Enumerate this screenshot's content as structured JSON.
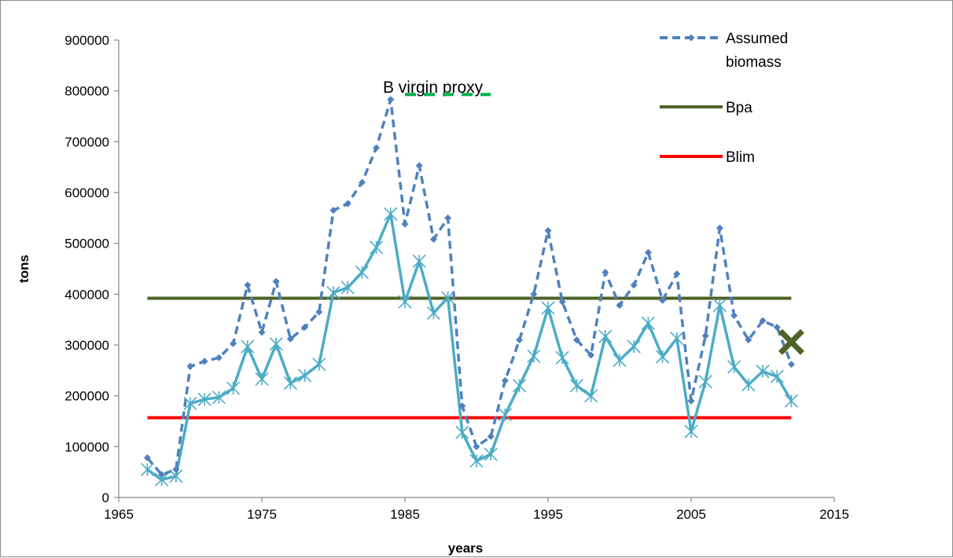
{
  "chart_data": {
    "type": "line",
    "title": "",
    "xlabel": "years",
    "ylabel": "tons",
    "xlim": [
      1965,
      2015
    ],
    "ylim": [
      0,
      900000
    ],
    "x_ticks": [
      1965,
      1975,
      1985,
      1995,
      2005,
      2015
    ],
    "y_ticks": [
      0,
      100000,
      200000,
      300000,
      400000,
      500000,
      600000,
      700000,
      800000,
      900000
    ],
    "grid": false,
    "legend_position": "top-right",
    "series": [
      {
        "name": "Assumed biomass",
        "style": "dashed",
        "color": "#4f81bd",
        "marker": "diamond",
        "x": [
          1967,
          1968,
          1969,
          1970,
          1971,
          1972,
          1973,
          1974,
          1975,
          1976,
          1977,
          1978,
          1979,
          1980,
          1981,
          1982,
          1983,
          1984,
          1985,
          1986,
          1987,
          1988,
          1989,
          1990,
          1991,
          1992,
          1993,
          1994,
          1995,
          1996,
          1997,
          1998,
          1999,
          2000,
          2001,
          2002,
          2003,
          2004,
          2005,
          2006,
          2007,
          2008,
          2009,
          2010,
          2011,
          2012
        ],
        "y": [
          78000,
          45000,
          55000,
          258000,
          268000,
          275000,
          303000,
          418000,
          325000,
          425000,
          312000,
          335000,
          365000,
          565000,
          578000,
          620000,
          688000,
          783000,
          538000,
          653000,
          508000,
          550000,
          180000,
          100000,
          120000,
          230000,
          310000,
          400000,
          525000,
          385000,
          310000,
          280000,
          443000,
          378000,
          418000,
          482000,
          388000,
          440000,
          190000,
          318000,
          530000,
          358000,
          310000,
          348000,
          335000,
          262000
        ]
      },
      {
        "name": "",
        "style": "solid",
        "color": "#4bacc6",
        "marker": "asterisk",
        "x": [
          1967,
          1968,
          1969,
          1970,
          1971,
          1972,
          1973,
          1974,
          1975,
          1976,
          1977,
          1978,
          1979,
          1980,
          1981,
          1982,
          1983,
          1984,
          1985,
          1986,
          1987,
          1988,
          1989,
          1990,
          1991,
          1992,
          1993,
          1994,
          1995,
          1996,
          1997,
          1998,
          1999,
          2000,
          2001,
          2002,
          2003,
          2004,
          2005,
          2006,
          2007,
          2008,
          2009,
          2010,
          2011,
          2012
        ],
        "y": [
          55000,
          35000,
          42000,
          185000,
          193000,
          197000,
          215000,
          297000,
          233000,
          302000,
          225000,
          240000,
          262000,
          403000,
          413000,
          443000,
          492000,
          558000,
          385000,
          465000,
          363000,
          393000,
          128000,
          72000,
          85000,
          163000,
          220000,
          278000,
          373000,
          275000,
          220000,
          200000,
          317000,
          270000,
          297000,
          343000,
          277000,
          313000,
          130000,
          228000,
          378000,
          257000,
          222000,
          248000,
          238000,
          190000
        ]
      },
      {
        "name": "Bpa",
        "style": "solid",
        "color": "#4f6228",
        "x": [
          1967,
          2012
        ],
        "y": [
          392000,
          392000
        ]
      },
      {
        "name": "Blim",
        "style": "solid",
        "color": "#ff0000",
        "x": [
          1967,
          2012
        ],
        "y": [
          157000,
          157000
        ]
      },
      {
        "name": "B virgin proxy",
        "style": "dashed",
        "color": "#00b050",
        "x": [
          1985,
          1991
        ],
        "y": [
          793000,
          793000
        ]
      }
    ],
    "point_marker": {
      "x": 2012,
      "y": 306000,
      "color": "#4f6228",
      "symbol": "x"
    },
    "annotations": [
      {
        "text": "B virgin proxy",
        "x": 1991,
        "y": 793000
      }
    ],
    "legend": [
      {
        "label_lines": [
          "Assumed",
          "biomass"
        ],
        "series": 0
      },
      {
        "label_lines": [
          "Bpa"
        ],
        "series": 2
      },
      {
        "label_lines": [
          "Blim"
        ],
        "series": 3
      }
    ]
  }
}
